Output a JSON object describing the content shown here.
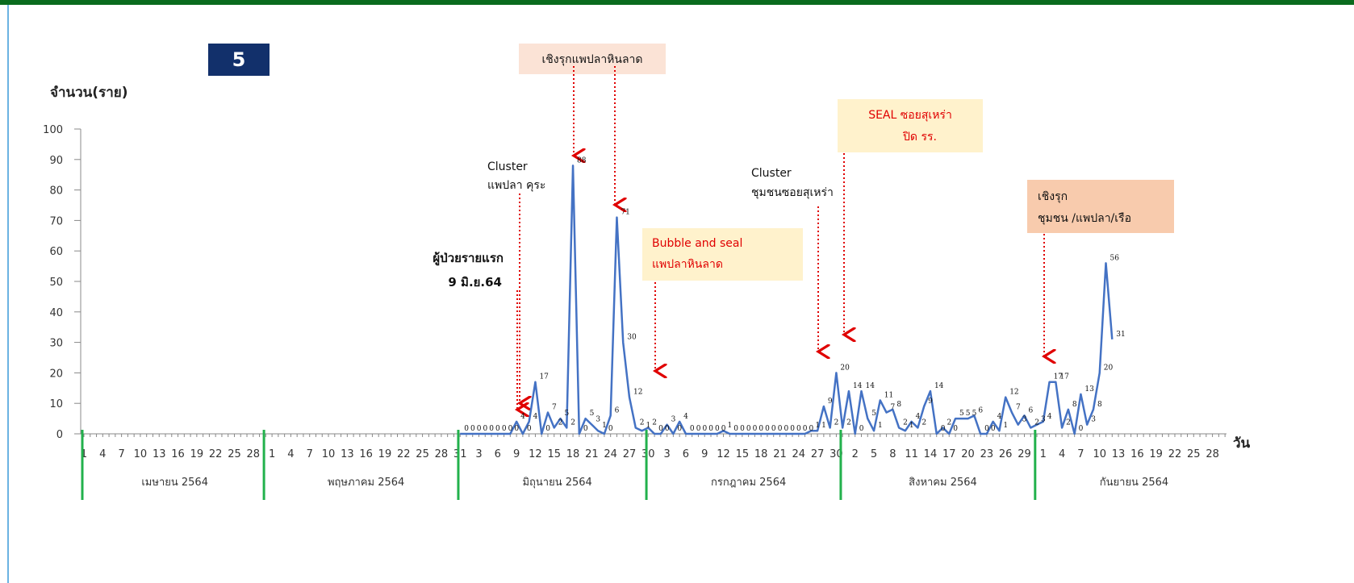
{
  "chart_data": {
    "type": "line",
    "badge": "5",
    "y_label": "จำนวน(ราย)",
    "x_label": "วัน",
    "categories": [
      1,
      null,
      null,
      4,
      null,
      null,
      7,
      null,
      null,
      10,
      null,
      null,
      13,
      null,
      null,
      16,
      null,
      null,
      19,
      null,
      null,
      22,
      null,
      null,
      25,
      null,
      null,
      28,
      null,
      null,
      1,
      null,
      null,
      4,
      null,
      null,
      7,
      null,
      null,
      10,
      null,
      null,
      13,
      null,
      null,
      16,
      null,
      null,
      19,
      null,
      null,
      22,
      null,
      null,
      25,
      null,
      null,
      28,
      null,
      null,
      31,
      null,
      null,
      3,
      null,
      null,
      6,
      null,
      null,
      9,
      null,
      null,
      12,
      null,
      null,
      15,
      null,
      null,
      18,
      null,
      null,
      21,
      null,
      null,
      24,
      null,
      null,
      27,
      null,
      null,
      30,
      null,
      null,
      3,
      null,
      null,
      6,
      null,
      null,
      9,
      null,
      null,
      12,
      null,
      null,
      15,
      null,
      null,
      18,
      null,
      null,
      21,
      null,
      null,
      24,
      null,
      null,
      27,
      null,
      null,
      30,
      null,
      null,
      2,
      null,
      null,
      5,
      null,
      null,
      8,
      null,
      null,
      11,
      null,
      null,
      14,
      null,
      null,
      17,
      null,
      null,
      20,
      null,
      null,
      23,
      null,
      null,
      26,
      null,
      null,
      29,
      null,
      null,
      1,
      null,
      null,
      4,
      null,
      null,
      7,
      null,
      null,
      10,
      null,
      null,
      13,
      null,
      null,
      16,
      null,
      null,
      19,
      null,
      null,
      22,
      null,
      null,
      25,
      null,
      null,
      28,
      null,
      null
    ],
    "months": [
      "เมษายน 2564",
      "พฤษภาคม 2564",
      "มิถุนายน 2564",
      "กรกฎาคม 2564",
      "สิงหาคม 2564",
      "กันยายน 2564"
    ],
    "series": [
      {
        "name": "จำนวน",
        "color": "#4472c4",
        "values": [
          null,
          null,
          null,
          null,
          null,
          null,
          null,
          null,
          null,
          null,
          null,
          null,
          null,
          null,
          null,
          null,
          null,
          null,
          null,
          null,
          null,
          null,
          null,
          null,
          null,
          null,
          null,
          null,
          null,
          null,
          null,
          null,
          null,
          null,
          null,
          null,
          null,
          null,
          null,
          null,
          null,
          null,
          null,
          null,
          null,
          null,
          null,
          null,
          null,
          null,
          null,
          null,
          null,
          null,
          null,
          null,
          null,
          null,
          null,
          null,
          0,
          0,
          0,
          0,
          0,
          0,
          0,
          0,
          0,
          4,
          0,
          4,
          17,
          0,
          7,
          2,
          5,
          2,
          88,
          0,
          5,
          3,
          1,
          0,
          6,
          71,
          30,
          12,
          2,
          1,
          2,
          0,
          0,
          3,
          0,
          4,
          0,
          0,
          0,
          0,
          0,
          0,
          1,
          0,
          0,
          0,
          0,
          0,
          0,
          0,
          0,
          0,
          0,
          0,
          0,
          0,
          1,
          1,
          9,
          2,
          20,
          2,
          14,
          0,
          14,
          5,
          1,
          11,
          7,
          8,
          2,
          1,
          4,
          2,
          9,
          14,
          0,
          2,
          0,
          5,
          5,
          5,
          6,
          0,
          0,
          4,
          1,
          12,
          7,
          3,
          6,
          2,
          3,
          4,
          17,
          17,
          2,
          8,
          0,
          13,
          3,
          8,
          20,
          56,
          31,
          null,
          null,
          null,
          null,
          null,
          null,
          null,
          null,
          null,
          null,
          null,
          null,
          null,
          null,
          null,
          null,
          null,
          null
        ]
      }
    ],
    "ylim": [
      0,
      100
    ],
    "yticks": [
      0,
      10,
      20,
      30,
      40,
      50,
      60,
      70,
      80,
      90,
      100
    ],
    "annotations": {
      "active_search_1": "เชิงรุกแพปลาหินลาด",
      "cluster_1": [
        "Cluster",
        "แพปลา คุระ"
      ],
      "first_case": [
        "ผู้ป่วยรายแรก",
        "9 มิ.ย.64"
      ],
      "bubble_seal": [
        "Bubble and seal",
        "แพปลาหินลาด"
      ],
      "cluster_2": [
        "Cluster",
        "ชุมชนซอยสุเหร่า"
      ],
      "seal": [
        "SEAL  ซอยสุเหร่า",
        "ปิด รร."
      ],
      "active_search_2": [
        "เชิงรุก",
        "ชุมชน /แพปลา/เรือ"
      ]
    }
  }
}
